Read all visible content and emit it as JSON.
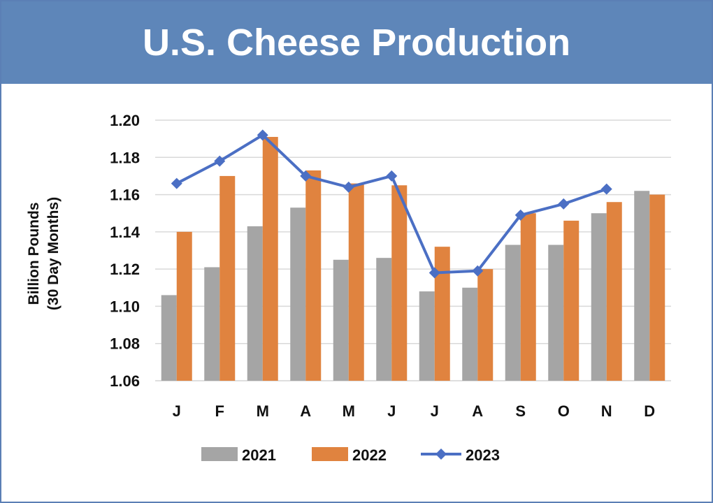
{
  "chart_data": {
    "type": "bar",
    "title": "U.S. Cheese Production",
    "ylabel_line1": "Billion Pounds",
    "ylabel_line2": "(30 Day Months)",
    "xlabel": "",
    "categories": [
      "J",
      "F",
      "M",
      "A",
      "M",
      "J",
      "J",
      "A",
      "S",
      "O",
      "N",
      "D"
    ],
    "ylim": [
      1.06,
      1.2
    ],
    "yticks": [
      "1.06",
      "1.08",
      "1.10",
      "1.12",
      "1.14",
      "1.16",
      "1.18",
      "1.20"
    ],
    "grid": true,
    "legend_position": "bottom",
    "series": [
      {
        "name": "2021",
        "kind": "bar",
        "color": "#a5a5a5",
        "values": [
          1.106,
          1.121,
          1.143,
          1.153,
          1.125,
          1.126,
          1.108,
          1.11,
          1.133,
          1.133,
          1.15,
          1.162
        ]
      },
      {
        "name": "2022",
        "kind": "bar",
        "color": "#e0833f",
        "values": [
          1.14,
          1.17,
          1.191,
          1.173,
          1.166,
          1.165,
          1.132,
          1.12,
          1.15,
          1.146,
          1.156,
          1.16
        ]
      },
      {
        "name": "2023",
        "kind": "line",
        "marker": "diamond",
        "color": "#4b6fc4",
        "values": [
          1.166,
          1.178,
          1.192,
          1.17,
          1.164,
          1.17,
          1.118,
          1.119,
          1.149,
          1.155,
          1.163,
          null
        ]
      }
    ]
  }
}
